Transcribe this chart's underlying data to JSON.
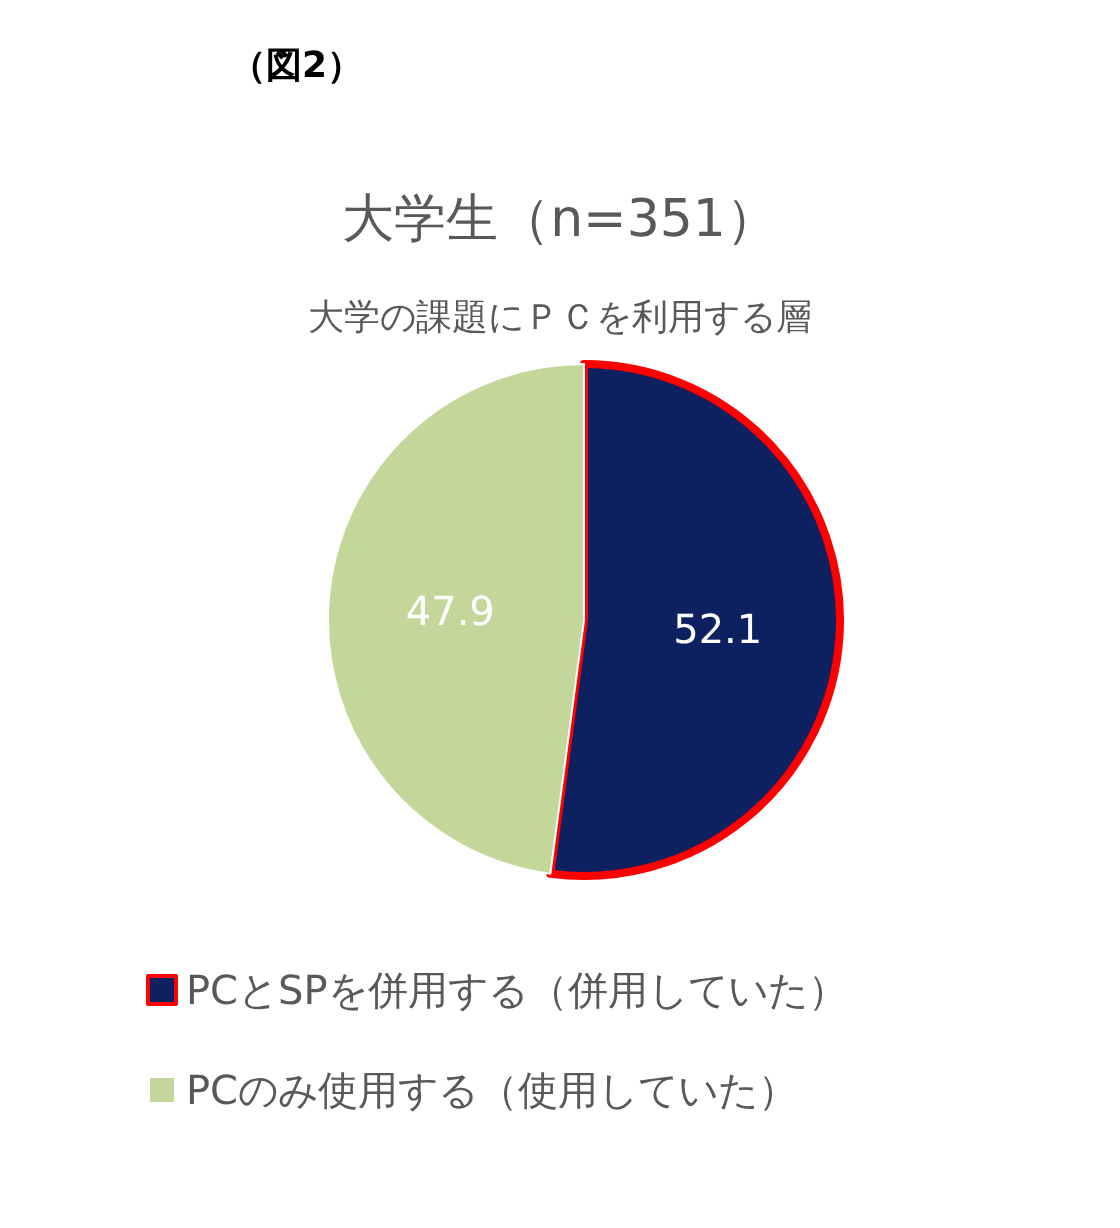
{
  "chart_data": {
    "type": "pie",
    "title": "大学生（n=351）",
    "subtitle": "大学の課題にＰＣを利用する層",
    "annotations": [
      "（図2）"
    ],
    "categories": [
      "PCとSPを併用する（併用していた）",
      "PCのみ使用する（使用していた）"
    ],
    "values": [
      52.1,
      47.9
    ],
    "colors": [
      "#0d2060",
      "#c4d79b"
    ],
    "data_labels": true,
    "legend": "bottom"
  }
}
